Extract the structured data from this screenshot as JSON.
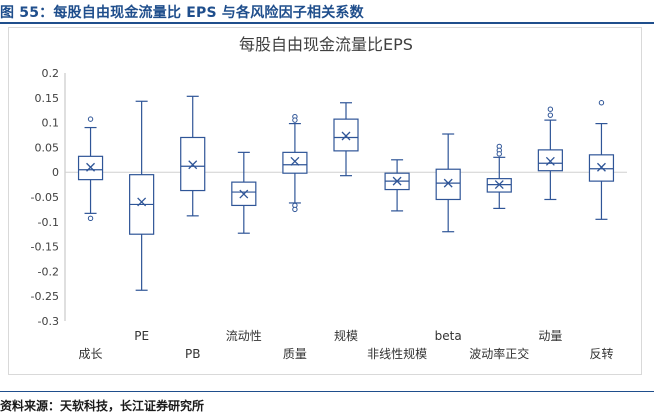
{
  "figure": {
    "title": "图 55：每股自由现金流量比 EPS 与各风险因子相关系数",
    "source": "资料来源：天软科技，长江证券研究所"
  },
  "chart_data": {
    "type": "boxplot",
    "title": "每股自由现金流量比EPS",
    "ylim": [
      -0.3,
      0.2
    ],
    "yticks": [
      "0.2",
      "0.15",
      "0.1",
      "0.05",
      "0",
      "-0.05",
      "-0.1",
      "-0.15",
      "-0.2",
      "-0.25",
      "-0.3"
    ],
    "grid": false,
    "box_color": "#2f5597",
    "categories": [
      "成长",
      "PE",
      "PB",
      "流动性",
      "质量",
      "规模",
      "非线性规模",
      "beta",
      "波动率正交",
      "动量",
      "反转"
    ],
    "boxes": [
      {
        "min": -0.083,
        "q1": -0.015,
        "median": 0.005,
        "mean": 0.01,
        "q3": 0.032,
        "max": 0.09,
        "outliers": [
          0.107,
          -0.093
        ]
      },
      {
        "min": -0.238,
        "q1": -0.125,
        "median": -0.065,
        "mean": -0.06,
        "q3": -0.005,
        "max": 0.143,
        "outliers": []
      },
      {
        "min": -0.088,
        "q1": -0.037,
        "median": 0.012,
        "mean": 0.015,
        "q3": 0.07,
        "max": 0.153,
        "outliers": []
      },
      {
        "min": -0.123,
        "q1": -0.067,
        "median": -0.04,
        "mean": -0.044,
        "q3": -0.02,
        "max": 0.04,
        "outliers": []
      },
      {
        "min": -0.062,
        "q1": -0.002,
        "median": 0.015,
        "mean": 0.022,
        "q3": 0.04,
        "max": 0.098,
        "outliers": [
          0.112,
          0.105,
          -0.067,
          -0.075
        ]
      },
      {
        "min": -0.007,
        "q1": 0.043,
        "median": 0.07,
        "mean": 0.073,
        "q3": 0.107,
        "max": 0.14,
        "outliers": []
      },
      {
        "min": -0.078,
        "q1": -0.035,
        "median": -0.018,
        "mean": -0.018,
        "q3": -0.002,
        "max": 0.025,
        "outliers": []
      },
      {
        "min": -0.12,
        "q1": -0.055,
        "median": -0.022,
        "mean": -0.022,
        "q3": 0.006,
        "max": 0.077,
        "outliers": []
      },
      {
        "min": -0.073,
        "q1": -0.04,
        "median": -0.025,
        "mean": -0.025,
        "q3": -0.013,
        "max": 0.03,
        "outliers": [
          0.052,
          0.044,
          0.037
        ]
      },
      {
        "min": -0.055,
        "q1": 0.003,
        "median": 0.018,
        "mean": 0.022,
        "q3": 0.045,
        "max": 0.105,
        "outliers": [
          0.127,
          0.115
        ]
      },
      {
        "min": -0.095,
        "q1": -0.018,
        "median": 0.007,
        "mean": 0.01,
        "q3": 0.035,
        "max": 0.098,
        "outliers": [
          0.14
        ]
      }
    ]
  }
}
